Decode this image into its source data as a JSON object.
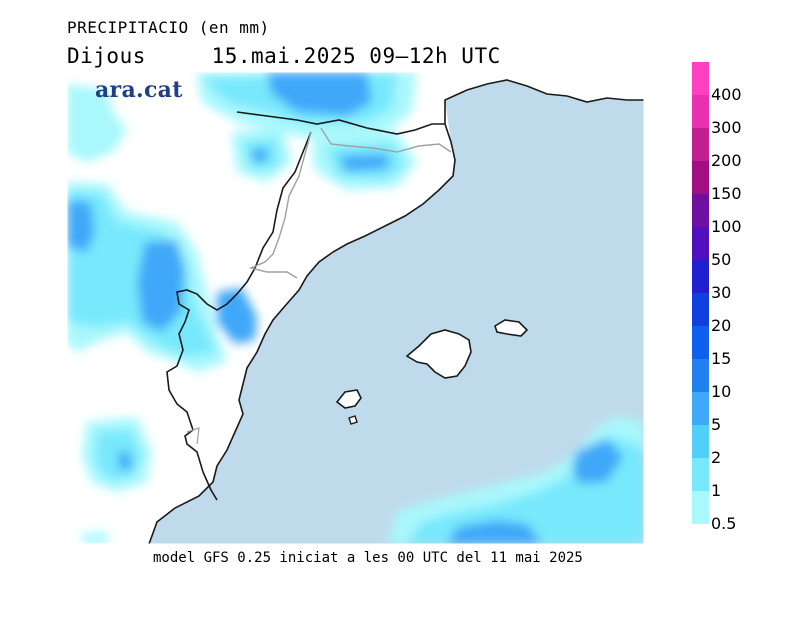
{
  "header": {
    "variable": "PRECIPITACIO (en mm)",
    "day": "Dijous",
    "datetime": "15.mai.2025 09–12h UTC"
  },
  "brand": "ara.cat",
  "footer": "model GFS 0.25 iniciat a les 00 UTC del 11 mai 2025",
  "legend": {
    "items": [
      {
        "label": "400",
        "color": "#ff40c0"
      },
      {
        "label": "300",
        "color": "#e830b0"
      },
      {
        "label": "200",
        "color": "#c02090"
      },
      {
        "label": "150",
        "color": "#a01080"
      },
      {
        "label": "100",
        "color": "#7010a0"
      },
      {
        "label": "50",
        "color": "#5010c0"
      },
      {
        "label": "30",
        "color": "#2020d0"
      },
      {
        "label": "20",
        "color": "#1040e0"
      },
      {
        "label": "15",
        "color": "#1060f0"
      },
      {
        "label": "10",
        "color": "#2080f0"
      },
      {
        "label": "5",
        "color": "#40a8f8"
      },
      {
        "label": "2",
        "color": "#50d0f8"
      },
      {
        "label": "1",
        "color": "#78e8fc"
      },
      {
        "label": "0.5",
        "color": "#a8f8fc"
      }
    ]
  },
  "colors": {
    "sea": "#bfdbeb",
    "land": "#ffffff",
    "coast": "#1a1a1a",
    "border": "#a0a0a0"
  }
}
